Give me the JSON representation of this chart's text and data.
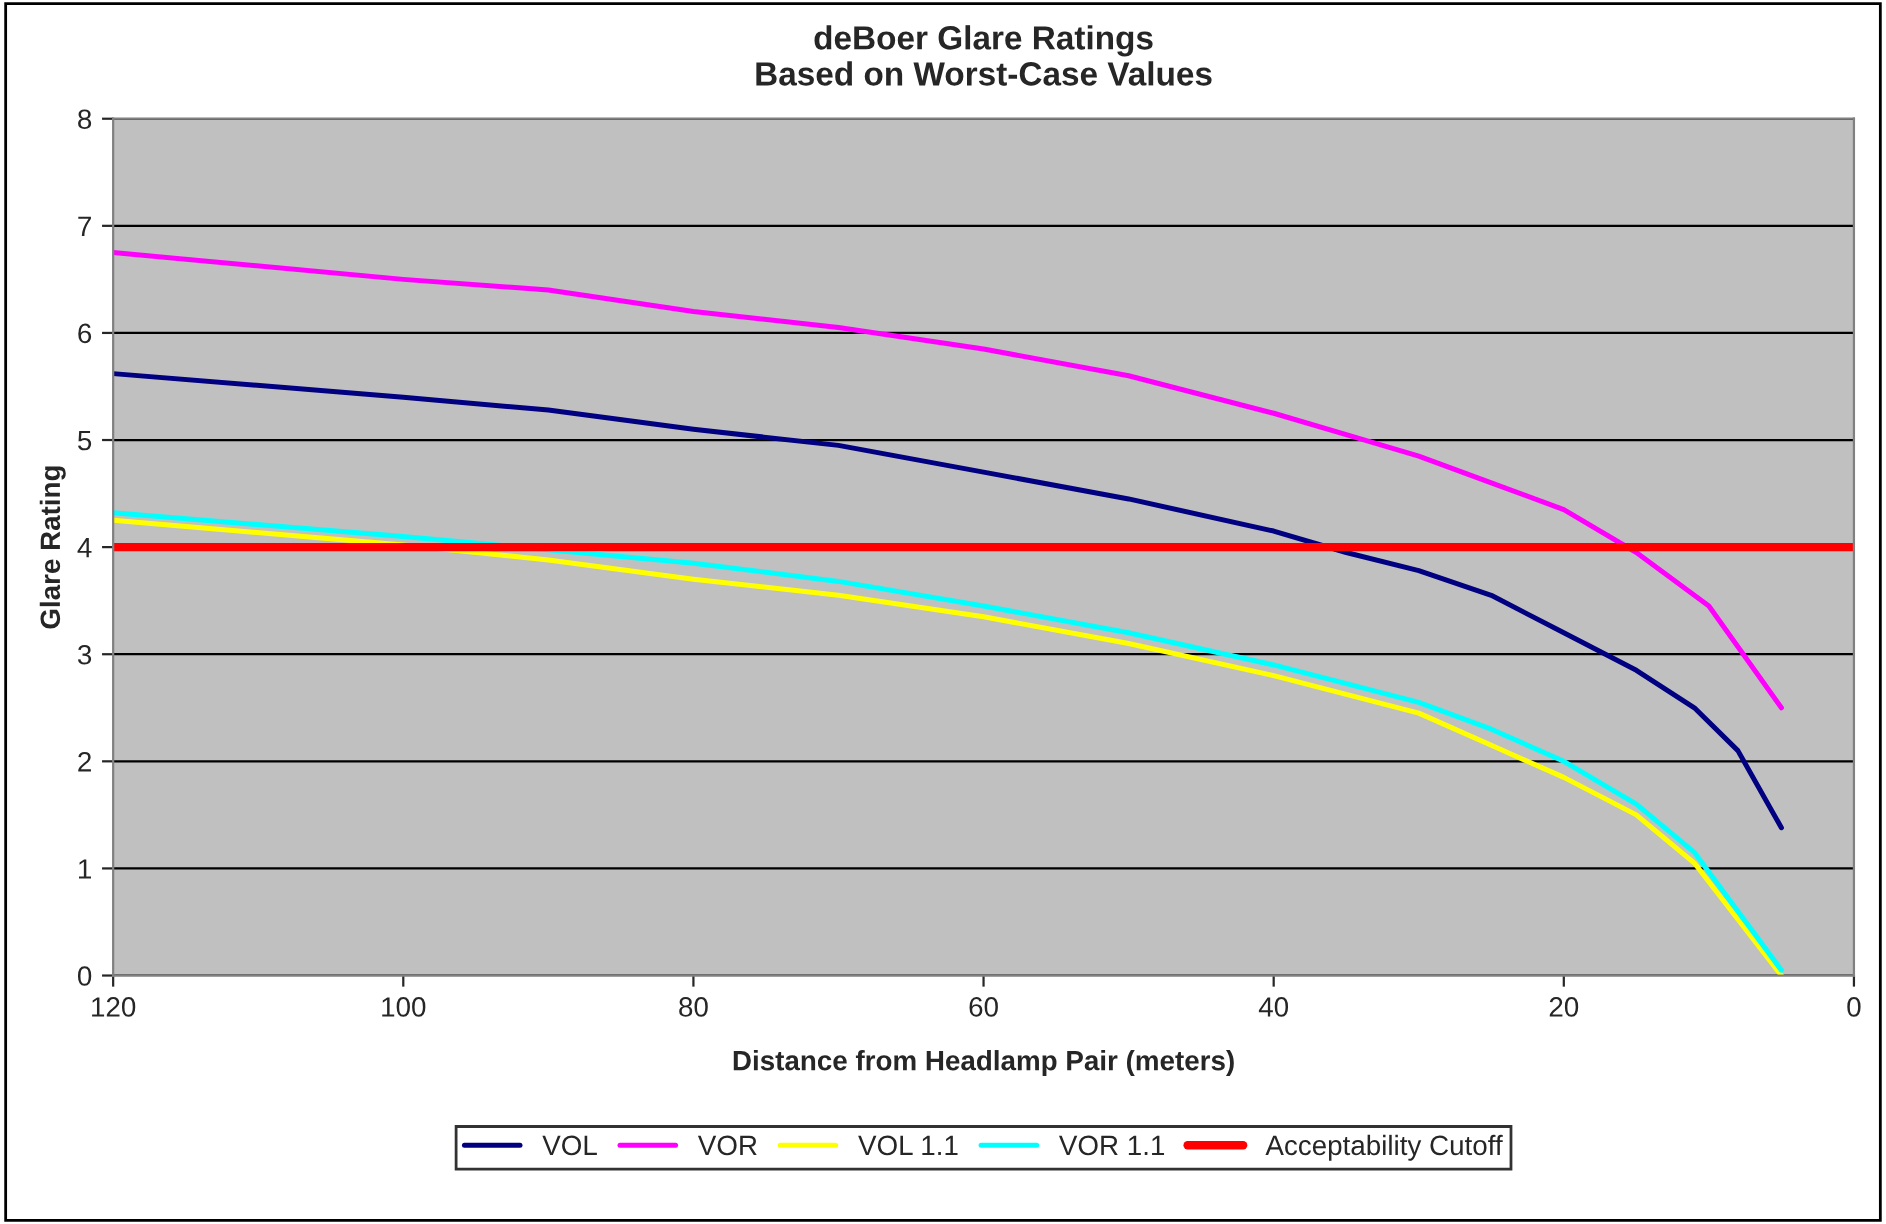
{
  "chart_data": {
    "type": "line",
    "title": "deBoer Glare Ratings\nBased on Worst-Case Values",
    "xlabel": "Distance from Headlamp Pair (meters)",
    "ylabel": "Glare Rating",
    "xlim": [
      120,
      0
    ],
    "xticks": [
      120,
      100,
      80,
      60,
      40,
      20,
      0
    ],
    "ylim": [
      0,
      8
    ],
    "yticks": [
      0,
      1,
      2,
      3,
      4,
      5,
      6,
      7,
      8
    ],
    "grid": "y",
    "legend": "bottom",
    "marker": "none",
    "line_style": "solid",
    "series": [
      {
        "name": "VOL",
        "color": "#000080",
        "x": [
          120,
          100,
          90,
          80,
          70,
          60,
          50,
          40,
          35,
          30,
          25,
          20,
          15,
          11,
          8,
          5
        ],
        "values": [
          5.62,
          5.4,
          5.28,
          5.1,
          4.95,
          4.7,
          4.45,
          4.15,
          3.95,
          3.78,
          3.55,
          3.2,
          2.85,
          2.5,
          2.1,
          1.38
        ]
      },
      {
        "name": "VOR",
        "color": "#ff00ff",
        "x": [
          120,
          100,
          90,
          80,
          70,
          60,
          50,
          40,
          35,
          30,
          25,
          20,
          15,
          10,
          5
        ],
        "values": [
          6.75,
          6.5,
          6.4,
          6.2,
          6.05,
          5.85,
          5.6,
          5.25,
          5.05,
          4.85,
          4.6,
          4.35,
          3.95,
          3.45,
          2.5
        ]
      },
      {
        "name": "VOL 1.1",
        "color": "#ffff00",
        "x": [
          120,
          100,
          90,
          80,
          70,
          60,
          50,
          40,
          30,
          25,
          20,
          15,
          11,
          5
        ],
        "values": [
          4.25,
          4.02,
          3.88,
          3.7,
          3.55,
          3.35,
          3.1,
          2.8,
          2.45,
          2.15,
          1.85,
          1.5,
          1.05,
          0.0
        ]
      },
      {
        "name": "VOR 1.1",
        "color": "#00ffff",
        "x": [
          120,
          100,
          80,
          70,
          60,
          50,
          40,
          30,
          25,
          20,
          15,
          11,
          5
        ],
        "values": [
          4.32,
          4.1,
          3.85,
          3.68,
          3.45,
          3.2,
          2.9,
          2.55,
          2.3,
          2.0,
          1.6,
          1.15,
          0.05
        ]
      },
      {
        "name": "Acceptability Cutoff",
        "color": "#ff0000",
        "x": [
          120,
          0
        ],
        "values": [
          4,
          4
        ]
      }
    ]
  }
}
